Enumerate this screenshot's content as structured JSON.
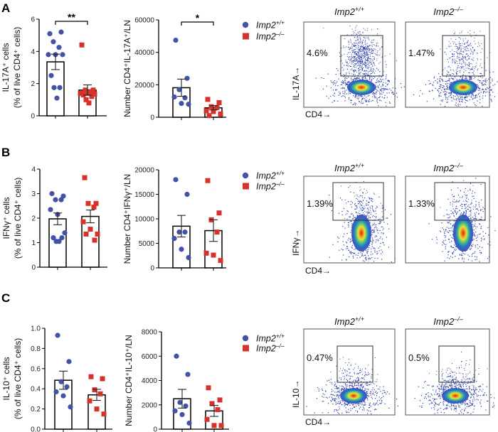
{
  "panel_labels": [
    "A",
    "B",
    "C"
  ],
  "legend": {
    "wt": {
      "name": "Imp2",
      "sup": "+/+"
    },
    "ko": {
      "name": "Imp2",
      "sup": "–/–"
    }
  },
  "colors": {
    "wt": "#4452a6",
    "ko": "#d6312b"
  },
  "chart_data": [
    {
      "type": "bar",
      "panel": "A",
      "ylabel": [
        "IL-17A⁺ cells",
        "(% of live CD4⁺ cells)"
      ],
      "ylim": [
        0,
        6
      ],
      "yticks": [
        "0",
        "2",
        "4",
        "6"
      ],
      "significance": "**",
      "series": [
        {
          "name": "Imp2+/+",
          "mean": 3.35,
          "sem": 0.48,
          "points": [
            5.1,
            5.2,
            4.6,
            4.25,
            3.8,
            3.8,
            3.8,
            2.5,
            1.75,
            1.75,
            1.1
          ]
        },
        {
          "name": "Imp2–/–",
          "mean": 1.6,
          "sem": 0.32,
          "points": [
            4.4,
            1.6,
            1.6,
            1.5,
            1.4,
            1.4,
            1.35,
            1.3,
            1.2,
            1.0,
            0.8
          ]
        }
      ]
    },
    {
      "type": "bar",
      "panel": "A",
      "ylabel": [
        "Number CD4⁺IL-17A⁺/LN"
      ],
      "ylim": [
        0,
        60000
      ],
      "yticks": [
        "0",
        "20000",
        "40000",
        "60000"
      ],
      "significance": "*",
      "series": [
        {
          "name": "Imp2+/+",
          "mean": 18200,
          "sem": 5300,
          "points": [
            47500,
            24000,
            17000,
            12000,
            12500,
            8500,
            8000
          ]
        },
        {
          "name": "Imp2–/–",
          "mean": 5800,
          "sem": 1300,
          "points": [
            11000,
            9000,
            6500,
            6000,
            4000,
            3500,
            2000,
            1000
          ]
        }
      ]
    },
    {
      "type": "bar",
      "panel": "B",
      "ylabel": [
        "IFNγ⁺ cells",
        "(% of live CD4⁺ cells)"
      ],
      "ylim": [
        0,
        4
      ],
      "yticks": [
        "0",
        "1",
        "2",
        "3",
        "4"
      ],
      "significance": "",
      "series": [
        {
          "name": "Imp2+/+",
          "mean": 1.97,
          "sem": 0.24,
          "points": [
            3.0,
            2.9,
            2.75,
            2.75,
            2.35,
            2.15,
            1.4,
            1.2,
            1.2,
            1.05,
            1.05
          ]
        },
        {
          "name": "Imp2–/–",
          "mean": 2.07,
          "sem": 0.26,
          "points": [
            3.65,
            2.6,
            2.6,
            2.45,
            1.85,
            1.55,
            1.35,
            1.35,
            1.1
          ]
        }
      ]
    },
    {
      "type": "bar",
      "panel": "B",
      "ylabel": [
        "Number CD4⁺IFNγ⁺/LN"
      ],
      "ylim": [
        0,
        20000
      ],
      "yticks": [
        "0",
        "5000",
        "10000",
        "15000",
        "20000"
      ],
      "significance": "",
      "series": [
        {
          "name": "Imp2+/+",
          "mean": 8500,
          "sem": 2200,
          "points": [
            18000,
            15000,
            7300,
            7300,
            6000,
            3800,
            2100
          ]
        },
        {
          "name": "Imp2–/–",
          "mean": 7600,
          "sem": 2200,
          "points": [
            17800,
            11200,
            9800,
            7300,
            3000,
            2600,
            1500
          ]
        }
      ]
    },
    {
      "type": "bar",
      "panel": "C",
      "ylabel": [
        "IL-10⁺ cells",
        "(% of live CD4⁺ cells)"
      ],
      "ylim": [
        0,
        1.0
      ],
      "yticks": [
        "0.0",
        "0.2",
        "0.4",
        "0.6",
        "0.8",
        "1.0"
      ],
      "significance": "",
      "series": [
        {
          "name": "Imp2+/+",
          "mean": 0.485,
          "sem": 0.09,
          "points": [
            0.93,
            0.67,
            0.47,
            0.42,
            0.37,
            0.33,
            0.22
          ]
        },
        {
          "name": "Imp2–/–",
          "mean": 0.34,
          "sem": 0.055,
          "points": [
            0.52,
            0.5,
            0.39,
            0.35,
            0.28,
            0.2,
            0.15
          ]
        }
      ]
    },
    {
      "type": "bar",
      "panel": "C",
      "ylabel": [
        "Number CD4⁺IL-10⁺/LN"
      ],
      "ylim": [
        0,
        8000
      ],
      "yticks": [
        "0",
        "2000",
        "4000",
        "6000",
        "8000"
      ],
      "significance": "",
      "series": [
        {
          "name": "Imp2+/+",
          "mean": 2500,
          "sem": 770,
          "points": [
            6000,
            4500,
            2200,
            1900,
            1500,
            1200,
            500
          ]
        },
        {
          "name": "Imp2–/–",
          "mean": 1500,
          "sem": 450,
          "points": [
            3400,
            2400,
            2100,
            1600,
            800,
            300,
            300
          ]
        }
      ]
    }
  ],
  "flow": [
    {
      "panel": "A",
      "ylabel": "IL-17A→",
      "xlabel": "CD4→",
      "plots": [
        {
          "title": "Imp2",
          "sup": "+/+",
          "pct": "4.6%"
        },
        {
          "title": "Imp2",
          "sup": "–/–",
          "pct": "1.47%"
        }
      ]
    },
    {
      "panel": "B",
      "ylabel": "IFNγ→",
      "xlabel": "CD4→",
      "plots": [
        {
          "title": "Imp2",
          "sup": "+/+",
          "pct": "1.39%"
        },
        {
          "title": "Imp2",
          "sup": "–/–",
          "pct": "1.33%"
        }
      ]
    },
    {
      "panel": "C",
      "ylabel": "IL-10→",
      "xlabel": "CD4→",
      "plots": [
        {
          "title": "Imp2",
          "sup": "+/+",
          "pct": "0.47%"
        },
        {
          "title": "Imp2",
          "sup": "–/–",
          "pct": "0.5%"
        }
      ]
    }
  ]
}
